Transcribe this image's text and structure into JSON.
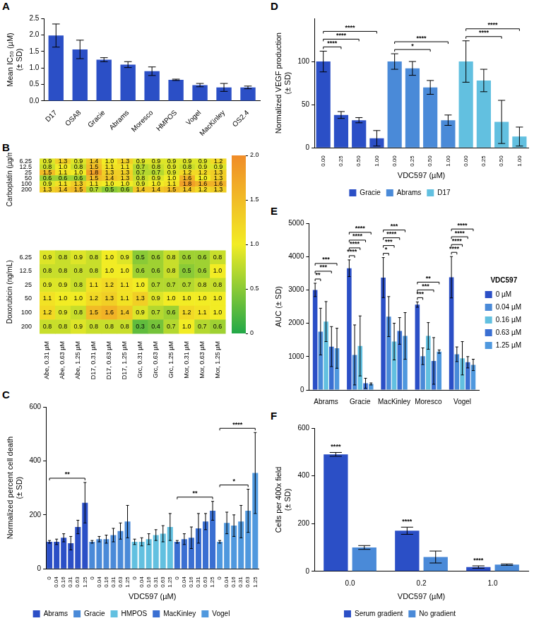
{
  "chart_data": [
    {
      "panel": "A",
      "type": "bar",
      "categories": [
        "D17",
        "OSA8",
        "Gracie",
        "Abrams",
        "Moresco",
        "HMPOS",
        "Vogel",
        "MacKinley",
        "OS2.4"
      ],
      "values": [
        1.98,
        1.56,
        1.25,
        1.1,
        0.9,
        0.64,
        0.48,
        0.41,
        0.41
      ],
      "errors": [
        0.35,
        0.28,
        0.06,
        0.09,
        0.13,
        0.02,
        0.05,
        0.12,
        0.04
      ],
      "color": "#2b4fc6",
      "ylabel": [
        "Mean IC₅₀ (µM)",
        "(± SD)"
      ],
      "ylim": [
        0,
        2.5
      ],
      "yticks": [
        {
          "value": 0,
          "label": "0.0"
        },
        {
          "value": 0.5,
          "label": "0.5"
        },
        {
          "value": 1,
          "label": "1.0"
        },
        {
          "value": 1.5,
          "label": "1.5"
        },
        {
          "value": 2,
          "label": "2.0"
        },
        {
          "value": 2.5,
          "label": "2.5"
        }
      ],
      "grid": false
    },
    {
      "panel": "B",
      "type": "heatmap",
      "columns": [
        "Abe, 0.31 µM",
        "Abe, 0.63 µM",
        "Abe, 1.25 µM",
        "D17, 0.31 µM",
        "D17, 0.63 µM",
        "D17, 1.25 µM",
        "Grc, 0.31 µM",
        "Grc, 0.63 µM",
        "Grc, 1.25 µM",
        "Mor, 0.31 µM",
        "Mor, 0.63 µM",
        "Mor, 1.25 µM"
      ],
      "heatmaps": [
        {
          "ylabel": "Carboplatin (µg/mL)",
          "categories": [
            "6.25",
            "12.5",
            "25",
            "50",
            "100",
            "200"
          ],
          "cells": [
            [
              0.9,
              1.3,
              0.9,
              1.4,
              1.0,
              1.3,
              0.9,
              0.9,
              0.9,
              0.9,
              0.9,
              1.2
            ],
            [
              0.8,
              1.0,
              0.8,
              1.5,
              1.1,
              1.1,
              0.7,
              0.8,
              0.9,
              0.8,
              0.9,
              0.9
            ],
            [
              1.5,
              1.1,
              1.0,
              1.8,
              1.3,
              1.3,
              0.7,
              0.7,
              0.9,
              1.2,
              1.2,
              1.3
            ],
            [
              0.6,
              0.6,
              0.6,
              1.5,
              1.4,
              1.3,
              0.8,
              0.9,
              1.0,
              1.6,
              1.0,
              1.3
            ],
            [
              0.9,
              1.1,
              1.3,
              1.1,
              1.0,
              1.0,
              0.9,
              1.0,
              1.1,
              1.8,
              1.6,
              1.6
            ],
            [
              1.3,
              1.4,
              1.5,
              0.7,
              0.5,
              0.6,
              1.4,
              1.4,
              1.5,
              1.4,
              1.2,
              1.3
            ]
          ],
          "cell_labels": [
            [
              "0.9",
              "1.3",
              "0.9",
              "1.4",
              "1.0",
              "1.3",
              "0.9",
              "0.9",
              "0.9",
              "0.9",
              "0.9",
              "1.2"
            ],
            [
              "0.8",
              "1.0",
              "0.8",
              "1.5",
              "1.1",
              "1.1",
              "0.7",
              "0.8",
              "0.9",
              "0.8",
              "0.9",
              "0.9"
            ],
            [
              "1.5",
              "1.1",
              "1.0",
              "1.8",
              "1.3",
              "1.3",
              "0.7",
              "0.7",
              "0.9",
              "1.2",
              "1.2",
              "1.3"
            ],
            [
              "0.6",
              "0.6",
              "0.6",
              "1.5",
              "1.4",
              "1.3",
              "0.8",
              "0.9",
              "1.0",
              "1.6",
              "1.0",
              "1.3"
            ],
            [
              "0.9",
              "1.1",
              "1.3",
              "1.1",
              "1.0",
              "1.0",
              "0.9",
              "1.0",
              "1.1",
              "1.8",
              "1.6",
              "1.6"
            ],
            [
              "1.3",
              "1.4",
              "1.5",
              "0.7",
              "0.5",
              "0.6",
              "1.4",
              "1.4",
              "1.5",
              "1.4",
              "1.2",
              "1.3"
            ]
          ]
        },
        {
          "ylabel": "Doxorubicin (ng/mL)",
          "categories": [
            "6.25",
            "12.5",
            "25",
            "50",
            "100",
            "200"
          ],
          "cells": [
            [
              0.9,
              0.8,
              0.9,
              0.8,
              1.0,
              0.9,
              0.5,
              0.6,
              0.8,
              0.6,
              0.6,
              0.8
            ],
            [
              0.8,
              0.8,
              0.8,
              0.8,
              1.0,
              1.0,
              0.6,
              0.6,
              0.8,
              0.5,
              0.6,
              1.0
            ],
            [
              0.9,
              0.9,
              0.8,
              1.1,
              1.2,
              1.1,
              1.0,
              0.7,
              0.7,
              0.7,
              0.8,
              0.8
            ],
            [
              1.1,
              1.0,
              1.0,
              1.2,
              1.3,
              1.1,
              1.3,
              0.9,
              1.0,
              1.0,
              1.0,
              1.0
            ],
            [
              1.2,
              0.9,
              0.8,
              1.5,
              1.6,
              1.4,
              0.9,
              0.7,
              0.6,
              1.2,
              1.1,
              1.0
            ],
            [
              0.8,
              0.8,
              0.9,
              0.8,
              0.8,
              0.8,
              0.3,
              0.4,
              0.7,
              1.0,
              0.7,
              0.6
            ]
          ],
          "cell_labels": [
            [
              "0.9",
              "0.8",
              "0.9",
              "0.8",
              "1.0",
              "0.9",
              "0.5",
              "0.6",
              "0.8",
              "0.6",
              "0.6",
              "0.8"
            ],
            [
              "0.8",
              "0.8",
              "0.8",
              "0.8",
              "1.0",
              "1.0",
              "0.6",
              "0.6",
              "0.8",
              "0.5",
              "0.6",
              "1.0"
            ],
            [
              "0.9",
              "0.9",
              "0.8",
              "1.1",
              "1.2",
              "1.1",
              "1.0",
              "0.7",
              "0.7",
              "0.7",
              "0.8",
              "0.8"
            ],
            [
              "1.1",
              "1.0",
              "1.0",
              "1.2",
              "1.3",
              "1.1",
              "1.3",
              "0.9",
              "1.0",
              "1.0",
              "1.0",
              "1.0"
            ],
            [
              "1.2",
              "0.9",
              "0.8",
              "1.5",
              "1.6",
              "1.4",
              "0.9",
              "0.7",
              "0.6",
              "1.2",
              "1.1",
              "1.0"
            ],
            [
              "0.8",
              "0.8",
              "0.9",
              "0.8",
              "0.8",
              "0.8",
              "0.3",
              "0.4",
              "0.7",
              "1.0",
              "0.7",
              "0.6"
            ]
          ]
        }
      ],
      "colorbar_range": [
        0,
        2
      ],
      "colorbar_ticks": [
        0,
        0.5,
        {
          "value": 1,
          "label": "1.0"
        },
        1.5,
        {
          "value": 2,
          "label": "2.0"
        }
      ]
    },
    {
      "panel": "C",
      "type": "bar",
      "xlabel": "VDC597 (µM)",
      "ylabel": [
        "Normalized percent cell death",
        "(± SD)"
      ],
      "categories": [
        "0",
        "0.04",
        "0.16",
        "0.31",
        "0.63",
        "1.25"
      ],
      "groups": [
        {
          "name": "Abrams",
          "color": "#2b4fc6",
          "values": [
            100,
            100,
            115,
            95,
            155,
            245
          ],
          "errors": [
            5,
            10,
            15,
            25,
            25,
            75
          ]
        },
        {
          "name": "Gracie",
          "color": "#4a8ad8",
          "values": [
            100,
            110,
            110,
            125,
            140,
            175
          ],
          "errors": [
            5,
            10,
            15,
            25,
            30,
            60
          ]
        },
        {
          "name": "HMPOS",
          "color": "#62c0e0",
          "values": [
            100,
            100,
            110,
            125,
            130,
            155
          ],
          "errors": [
            10,
            15,
            20,
            20,
            30,
            50
          ]
        },
        {
          "name": "MacKinley",
          "color": "#3a6fd2",
          "values": [
            100,
            110,
            115,
            150,
            175,
            215
          ],
          "errors": [
            5,
            20,
            40,
            55,
            30,
            35
          ]
        },
        {
          "name": "Vogel",
          "color": "#4f98de",
          "values": [
            100,
            170,
            160,
            175,
            215,
            355
          ],
          "errors": [
            5,
            40,
            40,
            60,
            80,
            150
          ]
        }
      ],
      "ylim": [
        0,
        600
      ],
      "yticks": [
        0,
        200,
        400,
        600
      ],
      "grid": false,
      "legend": "bottom",
      "significance": [
        {
          "group": "Abrams",
          "from": "0",
          "to": "1.25",
          "label": "**"
        },
        {
          "group": "MacKinley",
          "from": "0",
          "to": "1.25",
          "label": "**"
        },
        {
          "group": "Vogel",
          "from": "0",
          "to": "0.63",
          "label": "*"
        },
        {
          "group": "Vogel",
          "from": "0",
          "to": "1.25",
          "label": "****"
        }
      ]
    },
    {
      "panel": "D",
      "type": "bar",
      "xlabel": "VDC597 (µM)",
      "ylabel": [
        "Normalized VEGF production",
        "(± SD)"
      ],
      "categories": [
        "0.00",
        "0.25",
        "0.50",
        "1.00"
      ],
      "groups": [
        {
          "name": "Gracie",
          "color": "#2b4fc6",
          "values": [
            100,
            38,
            32,
            11
          ],
          "errors": [
            12,
            4,
            3,
            9
          ]
        },
        {
          "name": "Abrams",
          "color": "#4a8ad8",
          "values": [
            100,
            92,
            70,
            32
          ],
          "errors": [
            9,
            8,
            8,
            6
          ]
        },
        {
          "name": "D17",
          "color": "#62c0e0",
          "values": [
            100,
            78,
            30,
            13
          ],
          "errors": [
            24,
            13,
            25,
            11
          ]
        }
      ],
      "ylim": [
        0,
        150
      ],
      "yticks": [
        0,
        50,
        100
      ],
      "grid": false,
      "legend": "bottom",
      "significance": [
        {
          "group": "Gracie",
          "from": "0.00",
          "to": "0.25",
          "label": "****"
        },
        {
          "group": "Gracie",
          "from": "0.00",
          "to": "0.50",
          "label": "****"
        },
        {
          "group": "Gracie",
          "from": "0.00",
          "to": "1.00",
          "label": "****"
        },
        {
          "group": "Abrams",
          "from": "0.00",
          "to": "0.50",
          "label": "*"
        },
        {
          "group": "Abrams",
          "from": "0.00",
          "to": "1.00",
          "label": "****"
        },
        {
          "group": "D17",
          "from": "0.00",
          "to": "0.50",
          "label": "****"
        },
        {
          "group": "D17",
          "from": "0.00",
          "to": "1.00",
          "label": "****"
        }
      ]
    },
    {
      "panel": "E",
      "type": "bar",
      "ylabel": "AUC (± SD)",
      "categories": [
        "Abrams",
        "Gracie",
        "MacKinley",
        "Moresco",
        "Vogel"
      ],
      "series": [
        {
          "name": "0 µM",
          "color": "#2b4fc6",
          "values": [
            3000,
            3650,
            3370,
            2560,
            3380
          ],
          "errors": [
            200,
            250,
            600,
            80,
            620
          ]
        },
        {
          "name": "0.04 µM",
          "color": "#4a8ad8",
          "values": [
            1750,
            1050,
            2200,
            1010,
            1070
          ],
          "errors": [
            700,
            900,
            600,
            250,
            220
          ]
        },
        {
          "name": "0.16 µM",
          "color": "#62c0e0",
          "values": [
            2050,
            1320,
            1450,
            1620,
            950
          ],
          "errors": [
            600,
            900,
            550,
            400,
            500
          ]
        },
        {
          "name": "0.63 µM",
          "color": "#3a6fd2",
          "values": [
            1300,
            200,
            1770,
            870,
            830
          ],
          "errors": [
            600,
            150,
            400,
            700,
            170
          ]
        },
        {
          "name": "1.25 µM",
          "color": "#4f98de",
          "values": [
            1250,
            180,
            1620,
            1150,
            750
          ],
          "errors": [
            600,
            30,
            700,
            50,
            170
          ]
        }
      ],
      "legend_title": "VDC597",
      "ylim": [
        0,
        5000
      ],
      "yticks": [
        0,
        1000,
        2000,
        3000,
        4000,
        5000
      ],
      "grid": false,
      "legend": "right",
      "significance": [
        {
          "category": "Abrams",
          "from": "0 µM",
          "to": "0.04 µM",
          "label": "**"
        },
        {
          "category": "Abrams",
          "from": "0 µM",
          "to": "0.63 µM",
          "label": "***"
        },
        {
          "category": "Abrams",
          "from": "0 µM",
          "to": "1.25 µM",
          "label": "***"
        },
        {
          "category": "Gracie",
          "from": "0 µM",
          "to": "0.04 µM",
          "label": "****"
        },
        {
          "category": "Gracie",
          "from": "0 µM",
          "to": "0.16 µM",
          "label": "****"
        },
        {
          "category": "Gracie",
          "from": "0 µM",
          "to": "0.63 µM",
          "label": "****"
        },
        {
          "category": "Gracie",
          "from": "0 µM",
          "to": "1.25 µM",
          "label": "****"
        },
        {
          "category": "MacKinley",
          "from": "0 µM",
          "to": "0.04 µM",
          "label": "*"
        },
        {
          "category": "MacKinley",
          "from": "0 µM",
          "to": "0.16 µM",
          "label": "***"
        },
        {
          "category": "MacKinley",
          "from": "0 µM",
          "to": "0.63 µM",
          "label": "****"
        },
        {
          "category": "MacKinley",
          "from": "0 µM",
          "to": "1.25 µM",
          "label": "***"
        },
        {
          "category": "Moresco",
          "from": "0 µM",
          "to": "0.04 µM",
          "label": "***"
        },
        {
          "category": "Moresco",
          "from": "0 µM",
          "to": "0.63 µM",
          "label": "***"
        },
        {
          "category": "Moresco",
          "from": "0 µM",
          "to": "1.25 µM",
          "label": "**"
        },
        {
          "category": "Vogel",
          "from": "0 µM",
          "to": "0.04 µM",
          "label": "****"
        },
        {
          "category": "Vogel",
          "from": "0 µM",
          "to": "0.16 µM",
          "label": "****"
        },
        {
          "category": "Vogel",
          "from": "0 µM",
          "to": "0.63 µM",
          "label": "****"
        },
        {
          "category": "Vogel",
          "from": "0 µM",
          "to": "1.25 µM",
          "label": "****"
        }
      ]
    },
    {
      "panel": "F",
      "type": "bar",
      "xlabel": "VDC597 (µM)",
      "ylabel": [
        "Cells per 400x field",
        "(± SD)"
      ],
      "categories": [
        "0.0",
        "0.2",
        "1.0"
      ],
      "series": [
        {
          "name": "Serum gradient",
          "color": "#2b4fc6",
          "values": [
            490,
            170,
            18
          ],
          "errors": [
            8,
            15,
            5
          ]
        },
        {
          "name": "No gradient",
          "color": "#4a8ad8",
          "values": [
            100,
            60,
            28
          ],
          "errors": [
            8,
            25,
            3
          ]
        }
      ],
      "ylim": [
        0,
        600
      ],
      "yticks": [
        0,
        200,
        400,
        600
      ],
      "grid": false,
      "legend": "bottom",
      "significance": [
        {
          "category": "0.0",
          "series": "Serum gradient",
          "label": "****"
        },
        {
          "category": "0.2",
          "series": "Serum gradient",
          "label": "****"
        },
        {
          "category": "1.0",
          "series": "Serum gradient",
          "label": "****"
        }
      ]
    }
  ]
}
